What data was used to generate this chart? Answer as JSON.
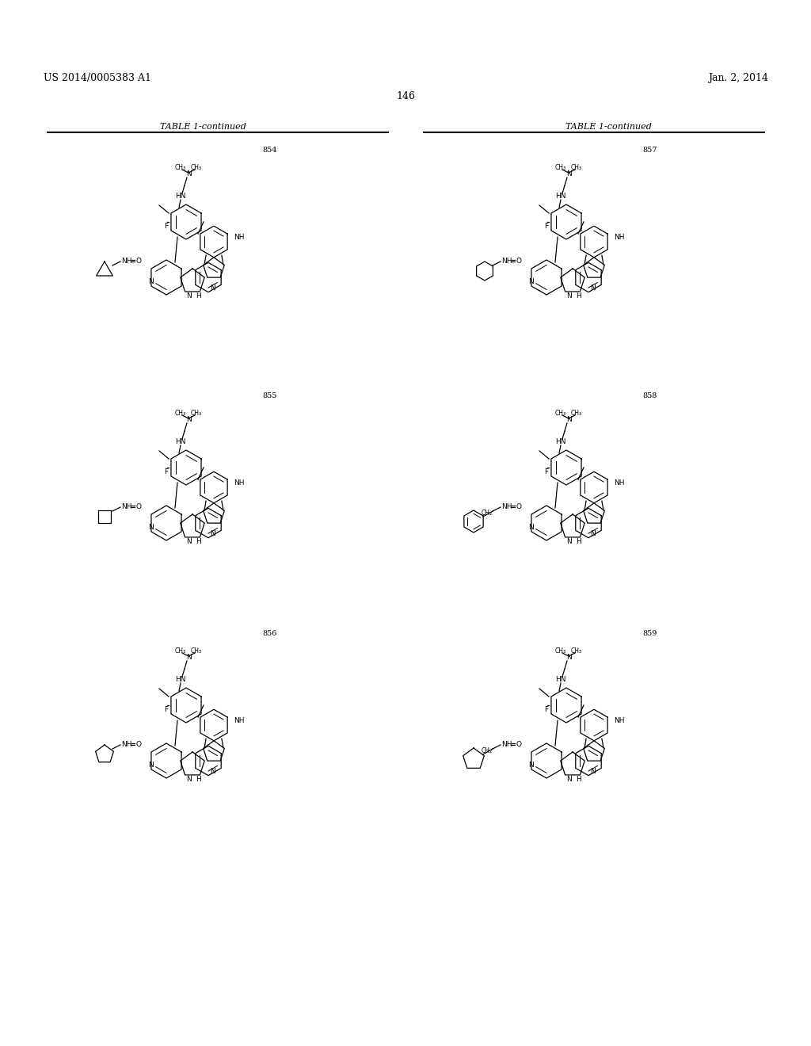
{
  "page_header_left": "US 2014/0005383 A1",
  "page_header_right": "Jan. 2, 2014",
  "page_number": "146",
  "table_label": "TABLE 1-continued",
  "compound_numbers": [
    "854",
    "855",
    "856",
    "857",
    "858",
    "859"
  ],
  "background_color": "#ffffff",
  "text_color": "#000000",
  "line_color": "#000000",
  "header_fontsize": 9,
  "page_num_fontsize": 9,
  "table_label_fontsize": 8,
  "compound_num_fontsize": 7
}
